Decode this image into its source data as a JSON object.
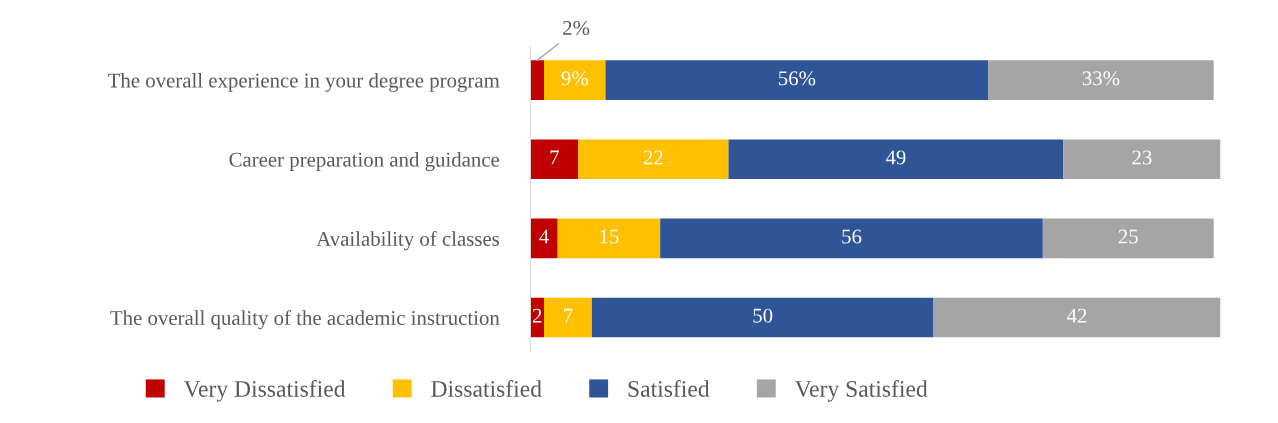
{
  "chart_data": {
    "type": "bar",
    "orientation": "horizontal",
    "stacked": true,
    "categories": [
      "The overall experience in your degree program",
      "Career preparation and guidance",
      "Availability of classes",
      "The overall quality of the academic instruction"
    ],
    "series": [
      {
        "name": "Very Dissatisfied",
        "color": "#c00000",
        "values": [
          2,
          7,
          4,
          2
        ],
        "value_labels": [
          "2%",
          "7",
          "4",
          "2"
        ]
      },
      {
        "name": "Dissatisfied",
        "color": "#ffc000",
        "values": [
          9,
          22,
          15,
          7
        ],
        "value_labels": [
          "9%",
          "22",
          "15",
          "7"
        ]
      },
      {
        "name": "Satisfied",
        "color": "#2f5597",
        "values": [
          56,
          49,
          56,
          50
        ],
        "value_labels": [
          "56%",
          "49",
          "56",
          "50"
        ]
      },
      {
        "name": "Very Satisfied",
        "color": "#a5a5a5",
        "values": [
          33,
          23,
          25,
          42
        ],
        "value_labels": [
          "33%",
          "23",
          "25",
          "42"
        ]
      }
    ],
    "legend": "bottom",
    "grid": false
  }
}
